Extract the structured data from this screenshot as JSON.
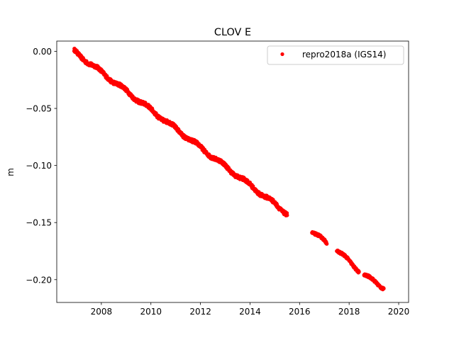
{
  "chart_data": {
    "type": "scatter",
    "title": "CLOV E",
    "xlabel": "",
    "ylabel": "m",
    "xlim": [
      2006.2,
      2020.4
    ],
    "ylim": [
      -0.22,
      0.009
    ],
    "xticks": [
      2008,
      2010,
      2012,
      2014,
      2016,
      2018,
      2020
    ],
    "xtick_labels": [
      "2008",
      "2010",
      "2012",
      "2014",
      "2016",
      "2018",
      "2020"
    ],
    "yticks": [
      0.0,
      -0.05,
      -0.1,
      -0.15,
      -0.2
    ],
    "ytick_labels": [
      "0.00",
      "−0.05",
      "−0.10",
      "−0.15",
      "−0.20"
    ],
    "grid": false,
    "legend_position": "top-right",
    "series": [
      {
        "name": "repro2018a (IGS14)",
        "color": "#ff0000",
        "marker": "circle",
        "segments": [
          {
            "x_start": 2006.9,
            "x_end": 2015.5,
            "y_start": 0.0,
            "y_end": -0.142,
            "jitter": 0.003
          },
          {
            "x_start": 2016.5,
            "x_end": 2017.1,
            "y_start": -0.158,
            "y_end": -0.168,
            "jitter": 0.002
          },
          {
            "x_start": 2017.5,
            "x_end": 2018.4,
            "y_start": -0.174,
            "y_end": -0.192,
            "jitter": 0.002
          },
          {
            "x_start": 2018.6,
            "x_end": 2019.4,
            "y_start": -0.196,
            "y_end": -0.207,
            "jitter": 0.002
          }
        ]
      }
    ]
  }
}
